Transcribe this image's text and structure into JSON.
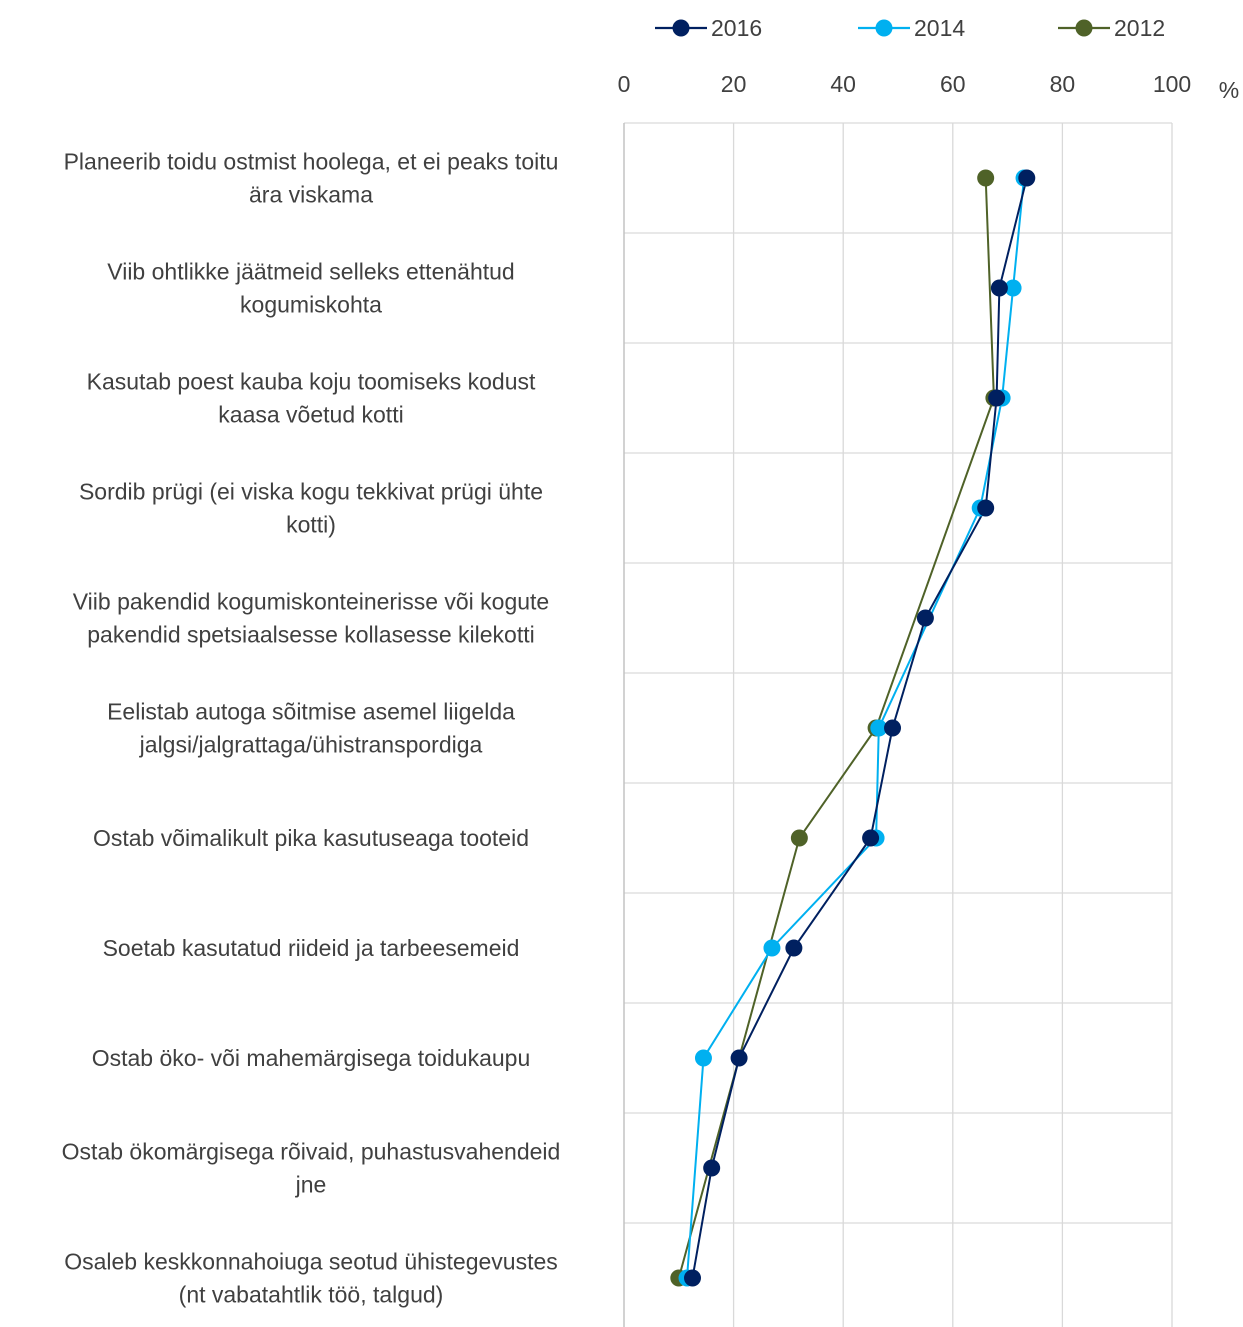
{
  "chart_data": {
    "type": "line",
    "orientation": "horizontal",
    "unit_label": "%",
    "xlim": [
      0,
      100
    ],
    "xticks": [
      0,
      20,
      40,
      60,
      80,
      100
    ],
    "grid": true,
    "legend_position": "top",
    "categories": [
      [
        "Planeerib toidu ostmist hoolega, et ei peaks toitu",
        "ära viskama"
      ],
      [
        "Viib ohtlikke jäätmeid selleks ettenähtud",
        "kogumiskohta"
      ],
      [
        "Kasutab poest kauba koju toomiseks kodust",
        "kaasa võetud kotti"
      ],
      [
        "Sordib prügi (ei viska kogu tekkivat prügi ühte",
        "kotti)"
      ],
      [
        "Viib pakendid kogumiskonteinerisse või kogute",
        "pakendid spetsiaalsesse kollasesse kilekotti"
      ],
      [
        "Eelistab autoga sõitmise asemel liigelda",
        "jalgsi/jalgrattaga/ühistranspordiga"
      ],
      [
        "Ostab võimalikult pika kasutuseaga tooteid"
      ],
      [
        "Soetab kasutatud riideid ja tarbeesemeid"
      ],
      [
        "Ostab öko- või mahemärgisega toidukaupu"
      ],
      [
        "Ostab ökomärgisega rõivaid, puhastusvahendeid",
        "jne"
      ],
      [
        "Osaleb keskkonnahoiuga seotud ühistegevustes",
        "(nt vabatahtlik töö, talgud)"
      ]
    ],
    "series": [
      {
        "name": "2012",
        "color": "#4f6228",
        "values": [
          66,
          null,
          67.5,
          null,
          null,
          46,
          32,
          null,
          null,
          null,
          10
        ]
      },
      {
        "name": "2014",
        "color": "#00b0f0",
        "values": [
          73,
          71,
          69,
          65,
          null,
          46.5,
          46,
          27,
          14.5,
          null,
          11.5
        ]
      },
      {
        "name": "2016",
        "color": "#002060",
        "values": [
          73.5,
          68.5,
          68,
          66,
          55,
          49,
          45,
          31,
          21,
          16,
          12.5
        ]
      }
    ],
    "legend_order": [
      "2016",
      "2014",
      "2012"
    ]
  }
}
